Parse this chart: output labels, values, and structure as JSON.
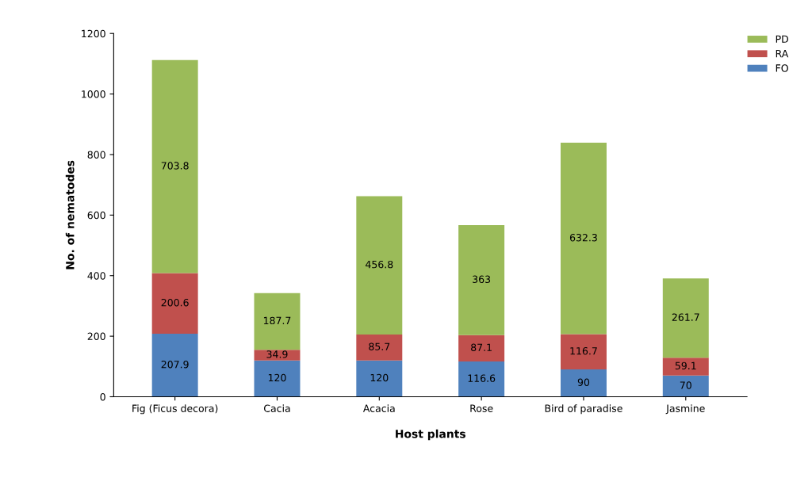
{
  "chart_data": {
    "type": "bar",
    "stacked": true,
    "xlabel": "Host plants",
    "ylabel": "No. of nematodes",
    "categories": [
      "Fig (Ficus decora)",
      "Cacia",
      "Acacia",
      "Rose",
      "Bird of paradise",
      "Jasmine"
    ],
    "series": [
      {
        "name": "FO",
        "color": "#4f81bd",
        "values": [
          207.9,
          120,
          120,
          116.6,
          90,
          70
        ]
      },
      {
        "name": "RA",
        "color": "#c0504d",
        "values": [
          200.6,
          34.9,
          85.7,
          87.1,
          116.7,
          59.1
        ]
      },
      {
        "name": "PD",
        "color": "#9bbb59",
        "values": [
          703.8,
          187.7,
          456.8,
          363,
          632.3,
          261.7
        ]
      }
    ],
    "ylim": [
      0,
      1200
    ],
    "yticks": [
      0,
      200,
      400,
      600,
      800,
      1000,
      1200
    ],
    "data_labels": true,
    "legend": "top right",
    "grid": false
  }
}
